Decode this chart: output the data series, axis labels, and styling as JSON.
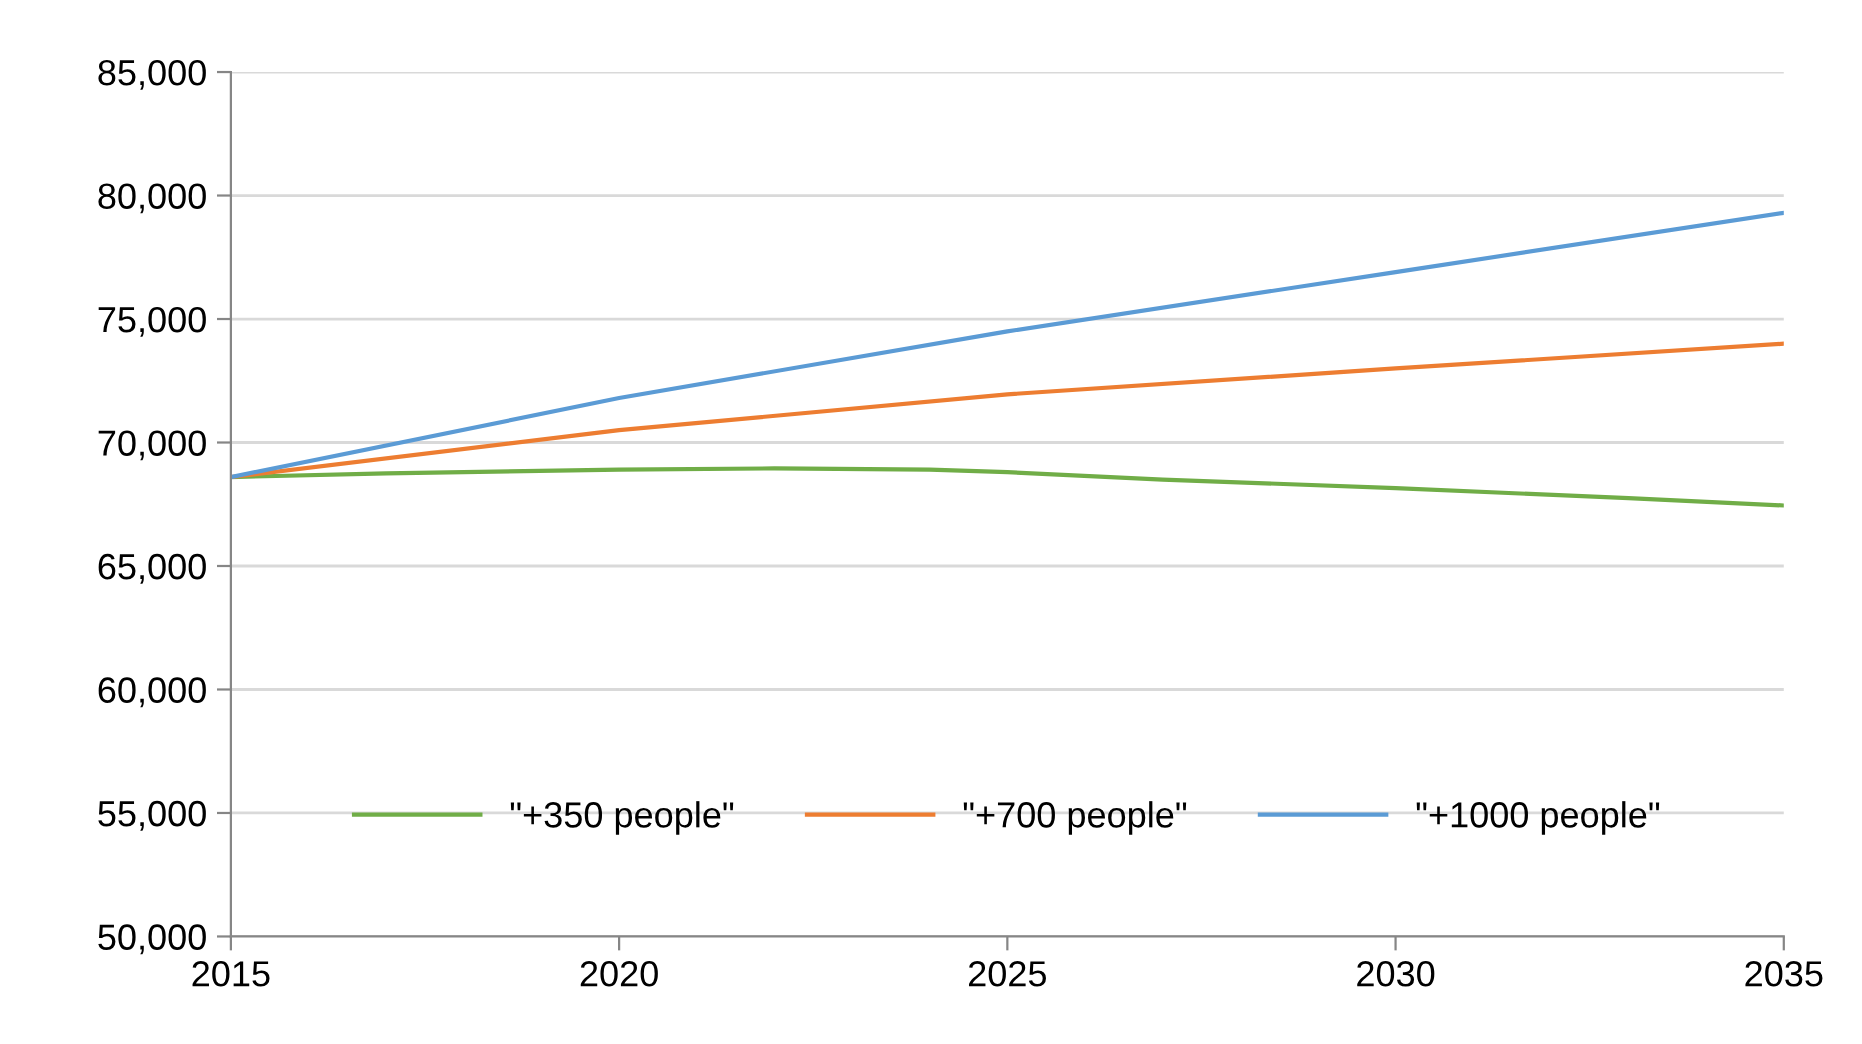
{
  "chart_data": {
    "type": "line",
    "xlim": [
      2015,
      2035
    ],
    "xticks": [
      2015,
      2020,
      2025,
      2030,
      2035
    ],
    "ylim": [
      50000,
      85000
    ],
    "yticks": [
      {
        "value": 50000,
        "label": "50,000"
      },
      {
        "value": 55000,
        "label": "55,000"
      },
      {
        "value": 60000,
        "label": "60,000"
      },
      {
        "value": 65000,
        "label": "65,000"
      },
      {
        "value": 70000,
        "label": "70,000"
      },
      {
        "value": 75000,
        "label": "75,000"
      },
      {
        "value": 80000,
        "label": "80,000"
      },
      {
        "value": 85000,
        "label": "85,000"
      }
    ],
    "grid": "y",
    "legend": "bottom",
    "marker": "none",
    "line_style": "solid",
    "series": [
      {
        "name": "\"+350 people\"",
        "color": "#70ad47",
        "x": [
          2015,
          2017,
          2020,
          2022,
          2024,
          2025,
          2027,
          2030,
          2033,
          2035
        ],
        "values": [
          68600,
          68750,
          68900,
          68950,
          68900,
          68800,
          68500,
          68150,
          67750,
          67450
        ]
      },
      {
        "name": "\"+700 people\"",
        "color": "#ed7d31",
        "x": [
          2015,
          2020,
          2025,
          2030,
          2035
        ],
        "values": [
          68600,
          70500,
          71950,
          73000,
          74000
        ]
      },
      {
        "name": "\"+1000 people\"",
        "color": "#5b9bd5",
        "x": [
          2015,
          2020,
          2025,
          2030,
          2035
        ],
        "values": [
          68600,
          71800,
          74500,
          76900,
          79300
        ]
      }
    ]
  }
}
